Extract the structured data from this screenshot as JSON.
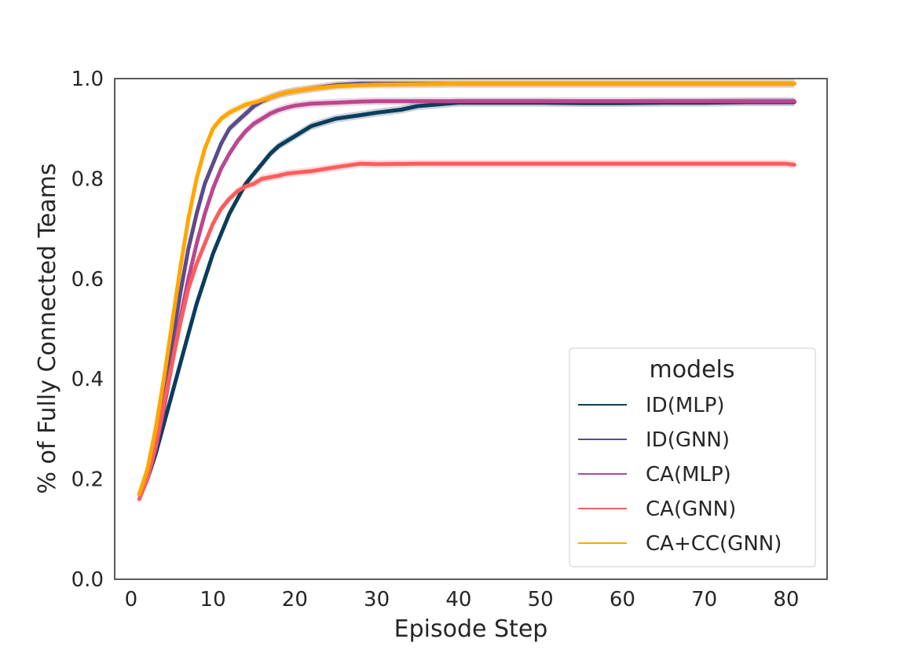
{
  "chart_data": {
    "type": "line",
    "title": "",
    "xlabel": "Episode Step",
    "ylabel": "% of Fully Connected Teams",
    "xlim": [
      -2,
      85
    ],
    "ylim": [
      0.0,
      1.0
    ],
    "xticks": [
      0,
      10,
      20,
      30,
      40,
      50,
      60,
      70,
      80
    ],
    "yticks": [
      0.0,
      0.2,
      0.4,
      0.6,
      0.8,
      1.0
    ],
    "ytick_labels": [
      "0.0",
      "0.2",
      "0.4",
      "0.6",
      "0.8",
      "1.0"
    ],
    "grid": false,
    "legend": {
      "title": "models",
      "position": "lower-right"
    },
    "series": [
      {
        "name": "ID(MLP)",
        "color": "#0b3d5c",
        "x": [
          1,
          2,
          3,
          4,
          5,
          6,
          7,
          8,
          9,
          10,
          11,
          12,
          13,
          14,
          15,
          16,
          17,
          18,
          19,
          20,
          22,
          25,
          28,
          30,
          33,
          35,
          40,
          45,
          50,
          55,
          60,
          65,
          70,
          75,
          80,
          81
        ],
        "y": [
          0.17,
          0.2,
          0.25,
          0.31,
          0.37,
          0.43,
          0.49,
          0.55,
          0.6,
          0.65,
          0.69,
          0.73,
          0.76,
          0.79,
          0.81,
          0.83,
          0.85,
          0.865,
          0.875,
          0.885,
          0.905,
          0.92,
          0.927,
          0.932,
          0.938,
          0.945,
          0.952,
          0.952,
          0.952,
          0.951,
          0.951,
          0.952,
          0.952,
          0.953,
          0.953,
          0.953
        ]
      },
      {
        "name": "ID(GNN)",
        "color": "#5a4b8c",
        "x": [
          1,
          2,
          3,
          4,
          5,
          6,
          7,
          8,
          9,
          10,
          11,
          12,
          13,
          14,
          15,
          16,
          17,
          18,
          19,
          20,
          22,
          25,
          28,
          30,
          35,
          40,
          45,
          50,
          55,
          60,
          65,
          70,
          75,
          80,
          81
        ],
        "y": [
          0.17,
          0.21,
          0.28,
          0.37,
          0.47,
          0.57,
          0.66,
          0.73,
          0.79,
          0.83,
          0.87,
          0.9,
          0.915,
          0.93,
          0.945,
          0.955,
          0.962,
          0.968,
          0.972,
          0.975,
          0.98,
          0.987,
          0.99,
          0.99,
          0.99,
          0.99,
          0.99,
          0.99,
          0.99,
          0.99,
          0.99,
          0.99,
          0.99,
          0.99,
          0.99
        ]
      },
      {
        "name": "CA(MLP)",
        "color": "#b9488f",
        "x": [
          1,
          2,
          3,
          4,
          5,
          6,
          7,
          8,
          9,
          10,
          11,
          12,
          13,
          14,
          15,
          16,
          17,
          18,
          19,
          20,
          22,
          25,
          28,
          30,
          35,
          40,
          45,
          50,
          55,
          60,
          65,
          70,
          75,
          80,
          81
        ],
        "y": [
          0.17,
          0.2,
          0.26,
          0.34,
          0.43,
          0.52,
          0.6,
          0.67,
          0.73,
          0.78,
          0.82,
          0.85,
          0.875,
          0.895,
          0.91,
          0.92,
          0.93,
          0.937,
          0.942,
          0.946,
          0.95,
          0.952,
          0.954,
          0.955,
          0.955,
          0.955,
          0.955,
          0.955,
          0.955,
          0.955,
          0.955,
          0.955,
          0.955,
          0.955,
          0.955
        ]
      },
      {
        "name": "CA(GNN)",
        "color": "#fb5d5e",
        "x": [
          1,
          2,
          3,
          4,
          5,
          6,
          7,
          8,
          9,
          10,
          11,
          12,
          13,
          14,
          15,
          16,
          17,
          18,
          19,
          20,
          22,
          25,
          28,
          30,
          35,
          40,
          45,
          50,
          55,
          60,
          65,
          70,
          75,
          80,
          81
        ],
        "y": [
          0.16,
          0.2,
          0.27,
          0.35,
          0.43,
          0.51,
          0.58,
          0.63,
          0.67,
          0.71,
          0.74,
          0.76,
          0.775,
          0.785,
          0.79,
          0.8,
          0.803,
          0.806,
          0.81,
          0.812,
          0.815,
          0.823,
          0.83,
          0.829,
          0.83,
          0.83,
          0.83,
          0.83,
          0.83,
          0.83,
          0.83,
          0.83,
          0.83,
          0.83,
          0.828
        ]
      },
      {
        "name": "CA+CC(GNN)",
        "color": "#ffa600",
        "x": [
          1,
          2,
          3,
          4,
          5,
          6,
          7,
          8,
          9,
          10,
          11,
          12,
          13,
          14,
          15,
          16,
          17,
          18,
          19,
          20,
          22,
          25,
          28,
          30,
          35,
          40,
          45,
          50,
          55,
          60,
          65,
          70,
          75,
          80,
          81
        ],
        "y": [
          0.17,
          0.22,
          0.3,
          0.4,
          0.51,
          0.62,
          0.72,
          0.8,
          0.86,
          0.9,
          0.92,
          0.932,
          0.94,
          0.948,
          0.952,
          0.957,
          0.962,
          0.968,
          0.972,
          0.975,
          0.98,
          0.985,
          0.987,
          0.988,
          0.989,
          0.99,
          0.99,
          0.99,
          0.99,
          0.99,
          0.99,
          0.99,
          0.99,
          0.99,
          0.99
        ]
      }
    ]
  }
}
